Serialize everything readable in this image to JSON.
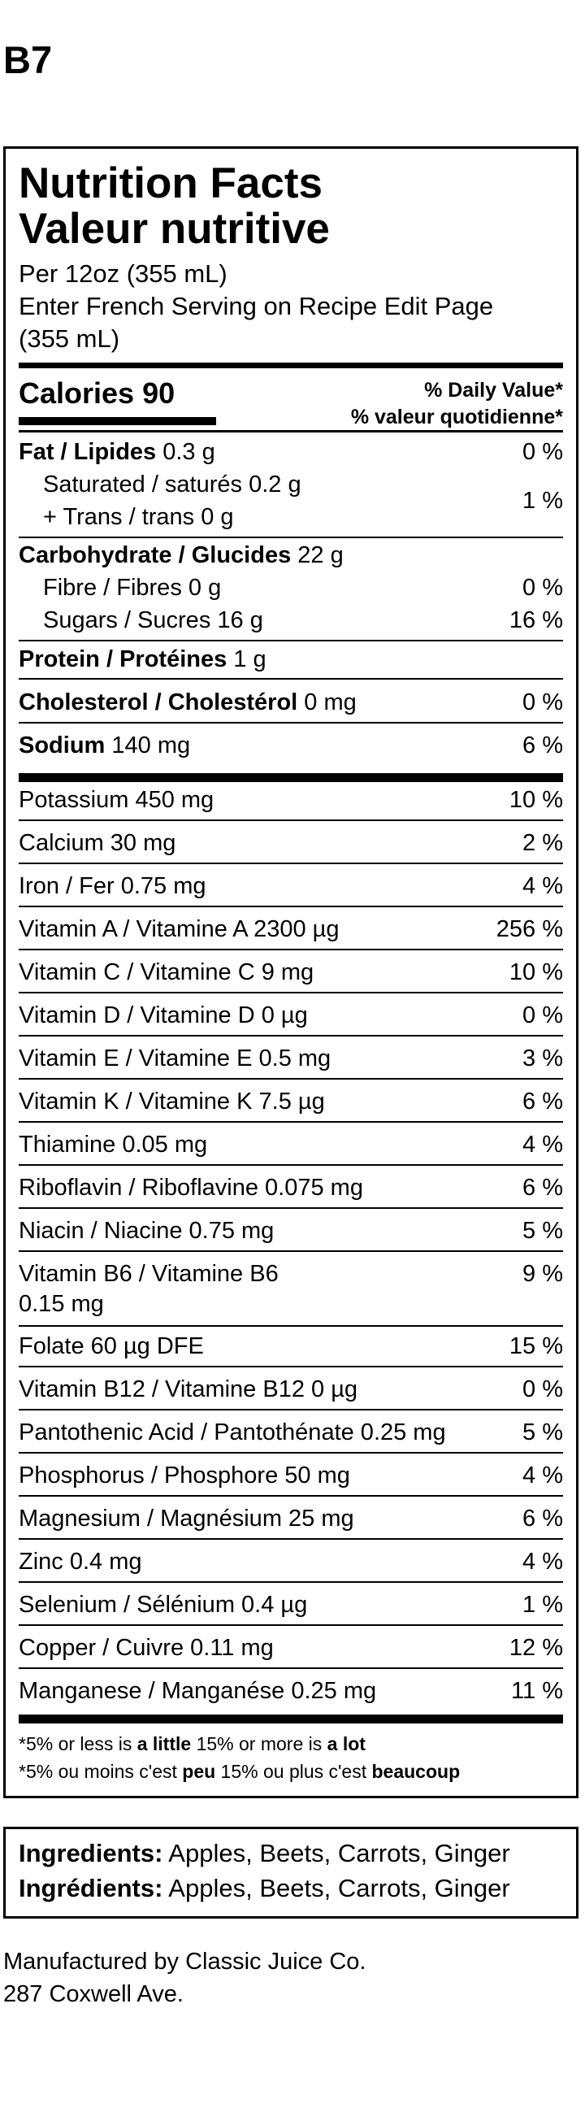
{
  "label_code": "B7",
  "title_en": "Nutrition Facts",
  "title_fr": "Valeur nutritive",
  "serving_lines": [
    "Per 12oz (355 mL)",
    "Enter French Serving on Recipe Edit Page",
    "(355 mL)"
  ],
  "calories": {
    "label": "Calories",
    "value": "90"
  },
  "dv_header": {
    "en": "% Daily Value*",
    "fr": "% valeur quotidienne*"
  },
  "fat": {
    "label": "Fat / Lipides",
    "amount": "0.3 g",
    "dv": "0 %"
  },
  "saturated": {
    "label": "Saturated / saturés",
    "amount": "0.2 g"
  },
  "trans": {
    "label": "+ Trans / trans",
    "amount": "0 g"
  },
  "sat_trans_dv": "1 %",
  "carbohydrate": {
    "label": "Carbohydrate / Glucides",
    "amount": "22 g"
  },
  "fibre": {
    "label": "Fibre / Fibres",
    "amount": "0 g",
    "dv": "0 %"
  },
  "sugars": {
    "label": "Sugars / Sucres",
    "amount": "16 g",
    "dv": "16 %"
  },
  "protein": {
    "label": "Protein / Protéines",
    "amount": "1 g"
  },
  "cholesterol": {
    "label": "Cholesterol / Cholestérol",
    "amount": "0 mg",
    "dv": "0 %"
  },
  "sodium": {
    "label": "Sodium",
    "amount": "140 mg",
    "dv": "6 %"
  },
  "micronutrients": [
    {
      "text": "Potassium 450 mg",
      "dv": "10 %"
    },
    {
      "text": "Calcium 30 mg",
      "dv": "2 %"
    },
    {
      "text": "Iron / Fer 0.75 mg",
      "dv": "4 %"
    },
    {
      "text": "Vitamin A / Vitamine A 2300 µg",
      "dv": "256 %"
    },
    {
      "text": "Vitamin C / Vitamine C 9 mg",
      "dv": "10 %"
    },
    {
      "text": "Vitamin D / Vitamine D 0 µg",
      "dv": "0 %"
    },
    {
      "text": "Vitamin E / Vitamine E 0.5 mg",
      "dv": "3 %"
    },
    {
      "text": "Vitamin K / Vitamine K 7.5 µg",
      "dv": "6 %"
    },
    {
      "text": "Thiamine 0.05 mg",
      "dv": "4 %"
    },
    {
      "text": "Riboflavin / Riboflavine 0.075 mg",
      "dv": "6 %"
    },
    {
      "text": "Niacin / Niacine 0.75 mg",
      "dv": "5 %"
    }
  ],
  "vitamin_b6": {
    "line1": "Vitamin B6 / Vitamine B6",
    "line2": "0.15 mg",
    "dv": "9 %"
  },
  "micronutrients_2": [
    {
      "text": "Folate 60 µg DFE",
      "dv": "15 %"
    },
    {
      "text": "Vitamin B12 / Vitamine B12 0 µg",
      "dv": "0 %"
    },
    {
      "text": "Pantothenic Acid / Pantothénate 0.25 mg",
      "dv": "5 %"
    },
    {
      "text": "Phosphorus / Phosphore 50 mg",
      "dv": "4 %"
    },
    {
      "text": "Magnesium / Magnésium 25 mg",
      "dv": "6 %"
    },
    {
      "text": "Zinc 0.4 mg",
      "dv": "4 %"
    },
    {
      "text": "Selenium / Sélénium 0.4 µg",
      "dv": "1 %"
    },
    {
      "text": "Copper / Cuivre 0.11 mg",
      "dv": "12 %"
    },
    {
      "text": "Manganese / Manganése 0.25 mg",
      "dv": "11 %"
    }
  ],
  "footnote_en": {
    "prefix": "*5% or less is ",
    "little": "a little",
    "middle": " 15% or more is ",
    "lot": "a lot"
  },
  "footnote_fr": {
    "prefix": "*5% ou moins c'est ",
    "little": "peu",
    "middle": " 15% ou plus c'est ",
    "lot": "beaucoup"
  },
  "ingredients_en": {
    "label": "Ingredients:",
    "text": " Apples, Beets, Carrots, Ginger"
  },
  "ingredients_fr": {
    "label": "Ingrédients:",
    "text": " Apples, Beets, Carrots, Ginger"
  },
  "manufacturer": {
    "line1": "Manufactured by Classic Juice Co.",
    "line2": "287 Coxwell Ave."
  }
}
